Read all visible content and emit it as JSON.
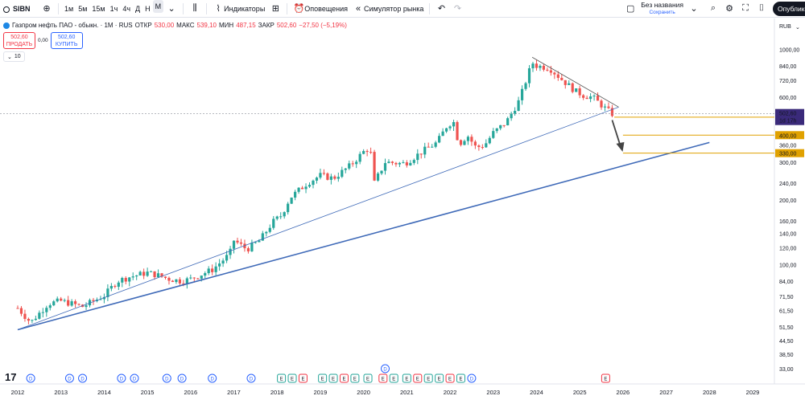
{
  "toolbar": {
    "symbol": "SIBN",
    "intervals": [
      "1м",
      "5м",
      "15м",
      "1ч",
      "4ч",
      "Д",
      "Н",
      "М"
    ],
    "active_interval": "М",
    "indicators_label": "Индикаторы",
    "alerts_label": "Оповещения",
    "replay_label": "Симулятор рынка",
    "layout_name": "Без названия",
    "layout_status": "Сохранить",
    "publish_label": "Опубликовать"
  },
  "legend": {
    "title": "Газпром нефть ПАО - обыкн. · 1М · RUS",
    "open_label": "ОТКР",
    "open": "530,00",
    "high_label": "МАКС",
    "high": "539,10",
    "low_label": "МИН",
    "low": "487,15",
    "close_label": "ЗАКР",
    "close": "502,60",
    "change": "−27,50 (−5,19%)",
    "sell_price": "502,60",
    "sell_label": "ПРОДАТЬ",
    "spread": "0,00",
    "buy_price": "502,60",
    "buy_label": "КУПИТЬ",
    "indicator_count": "10"
  },
  "colors": {
    "up": "#26a69a",
    "down": "#ef5350",
    "trend": "#3f6ab8",
    "level": "#e0a100",
    "price_tag": "#3a2a7a",
    "accent": "#2962ff"
  },
  "chart_data": {
    "type": "candlestick",
    "currency": "RUB",
    "y_scale": "log",
    "ylim": [
      28,
      1300
    ],
    "y_ticks": [
      "1000,00",
      "840,00",
      "720,00",
      "600,00",
      "485,00",
      "400,00",
      "360,00",
      "300,00",
      "240,00",
      "200,00",
      "160,00",
      "140,00",
      "120,00",
      "100,00",
      "84,00",
      "71,50",
      "61,50",
      "51,50",
      "44,50",
      "38,50",
      "33,00"
    ],
    "x_ticks": [
      "2012",
      "2013",
      "2014",
      "2015",
      "2016",
      "2017",
      "2018",
      "2019",
      "2020",
      "2021",
      "2022",
      "2023",
      "2024",
      "2025",
      "2026",
      "2027",
      "2028",
      "2029"
    ],
    "price_anchors": [
      [
        2012.0,
        63
      ],
      [
        2012.3,
        54
      ],
      [
        2012.7,
        66
      ],
      [
        2013.0,
        68
      ],
      [
        2013.5,
        64
      ],
      [
        2014.0,
        72
      ],
      [
        2014.3,
        84
      ],
      [
        2014.6,
        88
      ],
      [
        2015.0,
        92
      ],
      [
        2015.2,
        90
      ],
      [
        2015.5,
        86
      ],
      [
        2015.8,
        84
      ],
      [
        2016.0,
        86
      ],
      [
        2016.5,
        95
      ],
      [
        2016.9,
        112
      ],
      [
        2017.0,
        130
      ],
      [
        2017.3,
        118
      ],
      [
        2017.6,
        130
      ],
      [
        2017.9,
        158
      ],
      [
        2018.1,
        170
      ],
      [
        2018.3,
        205
      ],
      [
        2018.7,
        240
      ],
      [
        2019.0,
        260
      ],
      [
        2019.3,
        252
      ],
      [
        2019.7,
        290
      ],
      [
        2020.0,
        335
      ],
      [
        2020.15,
        350
      ],
      [
        2020.25,
        240
      ],
      [
        2020.5,
        300
      ],
      [
        2020.9,
        295
      ],
      [
        2021.0,
        300
      ],
      [
        2021.4,
        340
      ],
      [
        2021.7,
        370
      ],
      [
        2021.95,
        450
      ],
      [
        2022.1,
        460
      ],
      [
        2022.2,
        360
      ],
      [
        2022.4,
        400
      ],
      [
        2022.6,
        350
      ],
      [
        2022.8,
        360
      ],
      [
        2023.0,
        410
      ],
      [
        2023.3,
        460
      ],
      [
        2023.6,
        580
      ],
      [
        2023.9,
        870
      ],
      [
        2024.0,
        840
      ],
      [
        2024.3,
        820
      ],
      [
        2024.6,
        720
      ],
      [
        2024.9,
        640
      ],
      [
        2025.1,
        610
      ],
      [
        2025.3,
        600
      ],
      [
        2025.6,
        530
      ],
      [
        2025.75,
        502.6
      ]
    ],
    "last_price": "502,60",
    "last_countdown": "1d 17h",
    "levels": [
      {
        "value": "485,00"
      },
      {
        "value": "400,00"
      },
      {
        "value": "330,00"
      }
    ],
    "trendlines": [
      {
        "x1": 2012.0,
        "y1": 50,
        "x2": 2028.0,
        "y2": 370
      },
      {
        "x1": 2012.0,
        "y1": 50,
        "x2": 2025.9,
        "y2": 540
      },
      {
        "x1": 2023.9,
        "y1": 920,
        "x2": 2025.9,
        "y2": 540
      }
    ],
    "events": [
      {
        "t": 2012.3,
        "label": "D"
      },
      {
        "t": 2013.2,
        "label": "D"
      },
      {
        "t": 2013.5,
        "label": "D"
      },
      {
        "t": 2014.4,
        "label": "D"
      },
      {
        "t": 2014.7,
        "label": "D"
      },
      {
        "t": 2015.45,
        "label": "D"
      },
      {
        "t": 2015.8,
        "label": "D"
      },
      {
        "t": 2016.5,
        "label": "D"
      },
      {
        "t": 2017.4,
        "label": "D"
      },
      {
        "t": 2018.1,
        "label": "E"
      },
      {
        "t": 2018.35,
        "label": "E"
      },
      {
        "t": 2018.6,
        "label": "E"
      },
      {
        "t": 2019.05,
        "label": "E"
      },
      {
        "t": 2019.3,
        "label": "E"
      },
      {
        "t": 2019.55,
        "label": "E"
      },
      {
        "t": 2019.8,
        "label": "E"
      },
      {
        "t": 2020.1,
        "label": "E"
      },
      {
        "t": 2020.45,
        "label": "E"
      },
      {
        "t": 2020.7,
        "label": "E"
      },
      {
        "t": 2021.0,
        "label": "E"
      },
      {
        "t": 2021.25,
        "label": "E"
      },
      {
        "t": 2021.5,
        "label": "E"
      },
      {
        "t": 2021.75,
        "label": "E"
      },
      {
        "t": 2022.0,
        "label": "E"
      },
      {
        "t": 2022.25,
        "label": "E"
      },
      {
        "t": 2022.5,
        "label": "D"
      },
      {
        "t": 2025.6,
        "label": "E"
      }
    ]
  }
}
